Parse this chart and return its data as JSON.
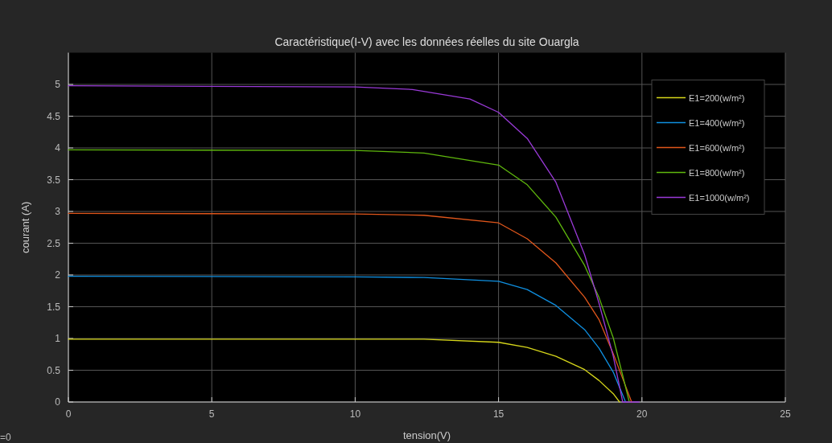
{
  "chart_data": {
    "type": "line",
    "title": "Caractéristique(I-V) avec les données réelles du site Ouargla",
    "xlabel": "tension(V)",
    "ylabel": "courant (A)",
    "xlim": [
      0,
      25
    ],
    "xticks": [
      0,
      5,
      10,
      15,
      20,
      25
    ],
    "ylim": [
      0,
      5.5
    ],
    "yticks": [
      0,
      0.5,
      1,
      1.5,
      2,
      2.5,
      3,
      3.5,
      4,
      4.5,
      5
    ],
    "grid": true,
    "legend": "top right",
    "marker": "none",
    "line_style": "solid",
    "annotations": [
      "=0"
    ],
    "series": [
      {
        "name": "E1=200(w/m²)",
        "color": "#d6d61a",
        "x": [
          0,
          10,
          12.4,
          15,
          16,
          17,
          18,
          18.5,
          19,
          19.22
        ],
        "values": [
          0.99,
          0.99,
          0.99,
          0.94,
          0.86,
          0.72,
          0.51,
          0.34,
          0.13,
          0
        ]
      },
      {
        "name": "E1=400(w/m²)",
        "color": "#0f8fe0",
        "x": [
          0,
          10,
          12.4,
          15,
          16,
          17,
          18,
          18.5,
          19,
          19.43
        ],
        "values": [
          1.98,
          1.97,
          1.96,
          1.9,
          1.77,
          1.52,
          1.14,
          0.85,
          0.47,
          0
        ]
      },
      {
        "name": "E1=600(w/m²)",
        "color": "#e0561b",
        "x": [
          0,
          10,
          12.4,
          15,
          16,
          17,
          18,
          18.5,
          19,
          19.64
        ],
        "values": [
          2.97,
          2.96,
          2.94,
          2.82,
          2.57,
          2.19,
          1.65,
          1.3,
          0.76,
          0
        ]
      },
      {
        "name": "E1=800(w/m²)",
        "color": "#5fb80d",
        "x": [
          0,
          10,
          12.4,
          15,
          16,
          17,
          18,
          18.5,
          19,
          19.56
        ],
        "values": [
          3.97,
          3.96,
          3.92,
          3.73,
          3.42,
          2.91,
          2.15,
          1.65,
          1.01,
          0
        ]
      },
      {
        "name": "E1=1000(w/m²)",
        "color": "#9a3ad8",
        "x": [
          0,
          10,
          12,
          14,
          15,
          16,
          17,
          18,
          18.5,
          19,
          19.33,
          19.9
        ],
        "values": [
          4.98,
          4.96,
          4.92,
          4.77,
          4.56,
          4.15,
          3.46,
          2.32,
          1.56,
          0.72,
          0,
          0
        ]
      }
    ]
  }
}
